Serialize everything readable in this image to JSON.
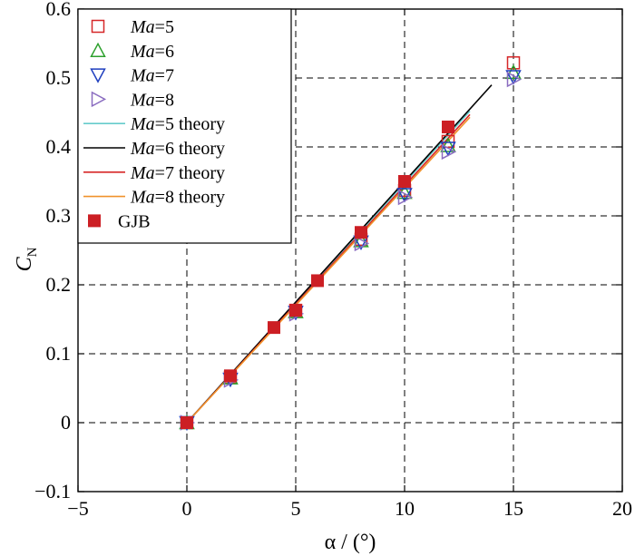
{
  "chart_data": {
    "type": "scatter",
    "title": "",
    "xlabel": "α / (°)",
    "ylabel_main": "C",
    "ylabel_sub": "N",
    "xlim": [
      -5,
      20
    ],
    "ylim": [
      -0.1,
      0.6
    ],
    "xticks": [
      "−5",
      "0",
      "5",
      "10",
      "15",
      "20"
    ],
    "yticks": [
      "−0.1",
      "0",
      "0.1",
      "0.2",
      "0.3",
      "0.4",
      "0.5",
      "0.6"
    ],
    "grid": "dashed",
    "legend_position": "top-left",
    "series": [
      {
        "name": "Ma=5",
        "name_italic": "Ma",
        "name_rest": "=5",
        "kind": "marker",
        "marker": "square-open",
        "color": "#d62728",
        "x": [
          0,
          2,
          5,
          8,
          10,
          12,
          15
        ],
        "y": [
          0,
          0.066,
          0.163,
          0.266,
          0.337,
          0.408,
          0.522
        ]
      },
      {
        "name": "Ma=6",
        "name_italic": "Ma",
        "name_rest": "=6",
        "kind": "marker",
        "marker": "triangle-up-open",
        "color": "#2ca02c",
        "x": [
          0,
          2,
          5,
          8,
          10,
          12,
          15
        ],
        "y": [
          0,
          0.065,
          0.161,
          0.264,
          0.334,
          0.402,
          0.508
        ]
      },
      {
        "name": "Ma=7",
        "name_italic": "Ma",
        "name_rest": "=7",
        "kind": "marker",
        "marker": "triangle-down-open",
        "color": "#1f3fbf",
        "x": [
          0,
          2,
          5,
          8,
          10,
          12,
          15
        ],
        "y": [
          0,
          0.063,
          0.16,
          0.262,
          0.331,
          0.398,
          0.502
        ]
      },
      {
        "name": "Ma=8",
        "name_italic": "Ma",
        "name_rest": "=8",
        "kind": "marker",
        "marker": "triangle-right-open",
        "color": "#8a6cc0",
        "x": [
          0,
          2,
          5,
          8,
          10,
          12,
          15
        ],
        "y": [
          0,
          0.062,
          0.158,
          0.26,
          0.327,
          0.393,
          0.498
        ]
      },
      {
        "name": "Ma=5 theory",
        "name_italic": "Ma",
        "name_rest": "=5 theory",
        "kind": "line",
        "color": "#66cccc",
        "x": [
          0,
          13
        ],
        "y": [
          0,
          0.452
        ]
      },
      {
        "name": "Ma=6 theory",
        "name_italic": "Ma",
        "name_rest": "=6 theory",
        "kind": "line",
        "color": "#000000",
        "x": [
          0,
          14
        ],
        "y": [
          0,
          0.49
        ]
      },
      {
        "name": "Ma=7 theory",
        "name_italic": "Ma",
        "name_rest": "=7 theory",
        "kind": "line",
        "color": "#d62728",
        "x": [
          0,
          13
        ],
        "y": [
          0,
          0.447
        ]
      },
      {
        "name": "Ma=8 theory",
        "name_italic": "Ma",
        "name_rest": "=8 theory",
        "kind": "line",
        "color": "#f0922b",
        "x": [
          0,
          13
        ],
        "y": [
          0,
          0.443
        ]
      },
      {
        "name": "GJB",
        "name_italic": "",
        "name_rest": "GJB",
        "kind": "marker",
        "marker": "square-filled",
        "color": "#cc1f24",
        "x": [
          0,
          2,
          4,
          5,
          6,
          8,
          10,
          12
        ],
        "y": [
          0,
          0.068,
          0.138,
          0.163,
          0.206,
          0.276,
          0.35,
          0.429
        ]
      }
    ]
  }
}
